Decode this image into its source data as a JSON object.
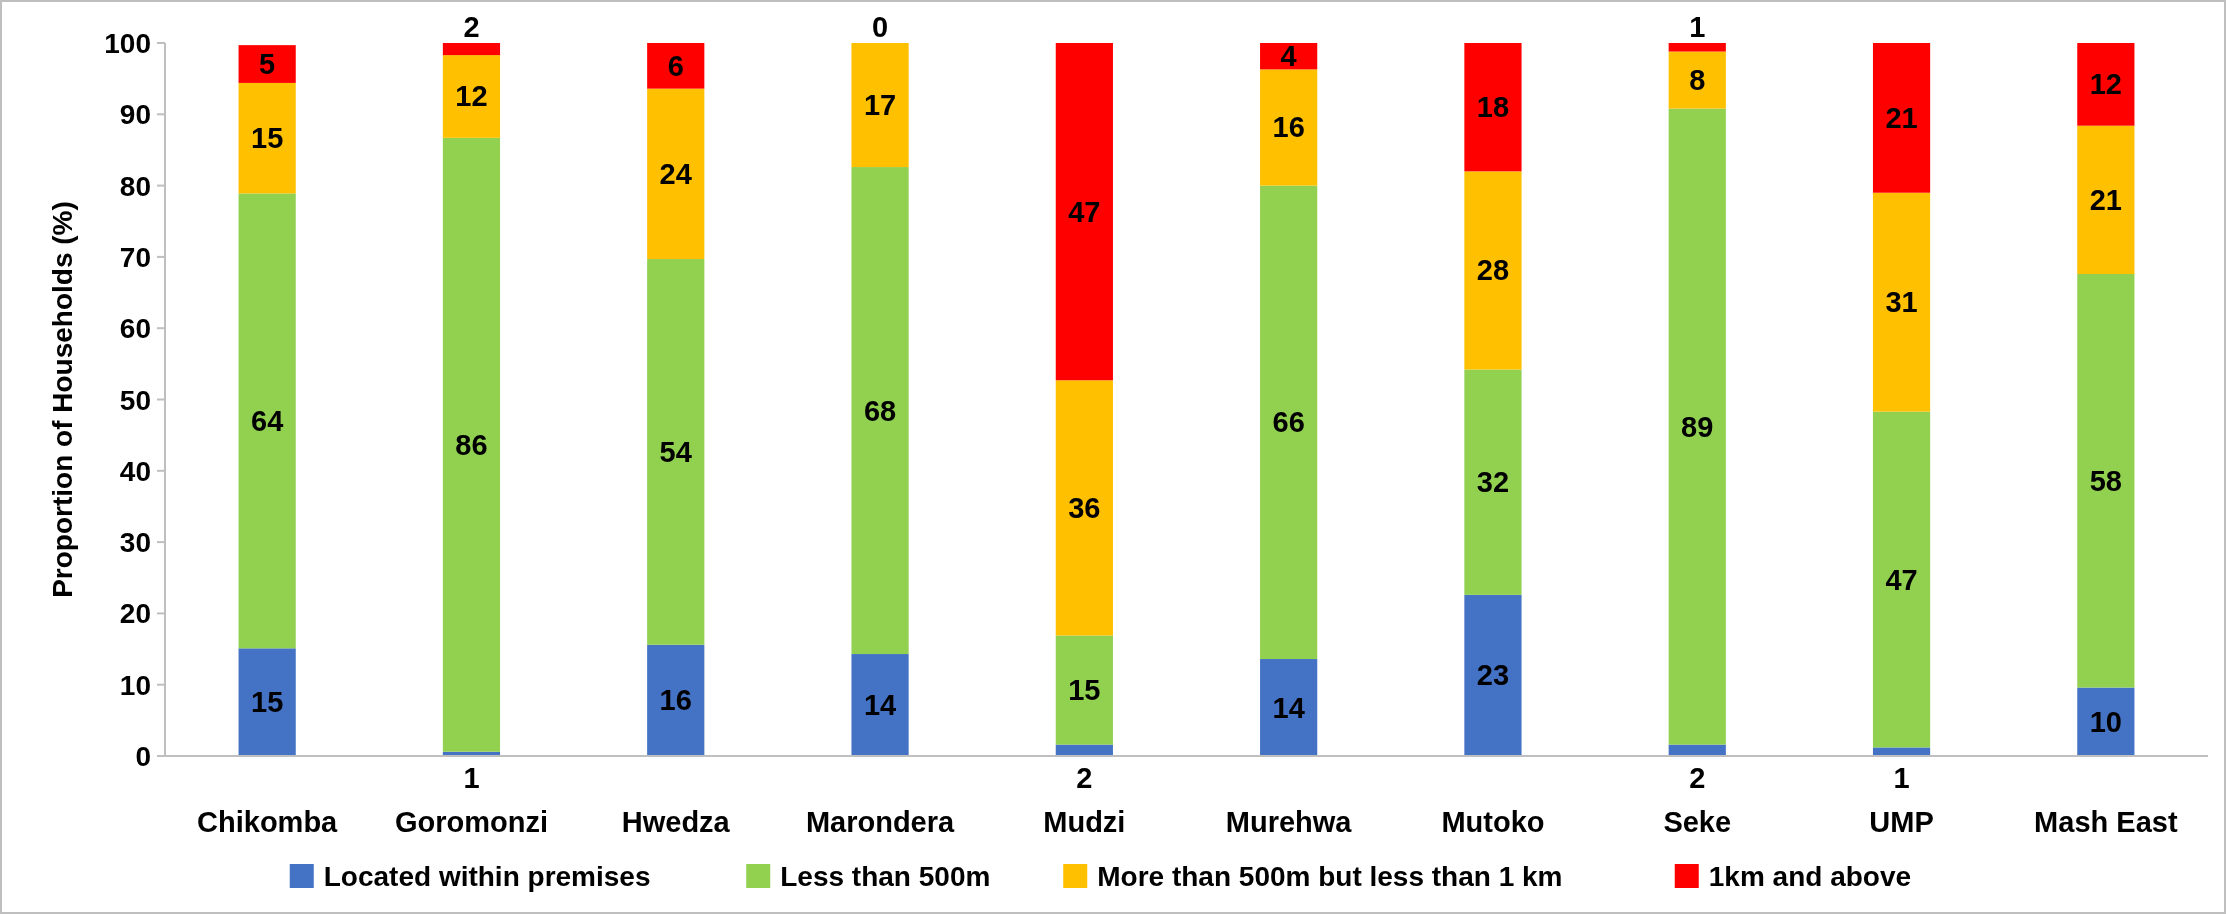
{
  "chart_data": {
    "type": "bar",
    "stacked": true,
    "ylabel": "Proportion of Households (%)",
    "categories": [
      "Chikomba",
      "Goromonzi",
      "Hwedza",
      "Marondera",
      "Mudzi",
      "Murehwa",
      "Mutoko",
      "Seke",
      "UMP",
      "Mash East"
    ],
    "series": [
      {
        "name": "Located within premises",
        "color": "#4472c4",
        "values": [
          15.1,
          0.6,
          15.6,
          14.3,
          1.6,
          13.6,
          22.6,
          1.6,
          1.2,
          9.6
        ],
        "value_labels": [
          "15",
          "1",
          "16",
          "14",
          "2",
          "14",
          "23",
          "2",
          "1",
          "10"
        ]
      },
      {
        "name": "Less than 500m",
        "color": "#92d050",
        "values": [
          63.8,
          86.1,
          54.1,
          68.3,
          15.3,
          66.4,
          31.6,
          89.2,
          47.1,
          58.0
        ],
        "value_labels": [
          "64",
          "86",
          "54",
          "68",
          "15",
          "66",
          "32",
          "89",
          "47",
          "58"
        ]
      },
      {
        "name": "More than 500m but less than 1 km",
        "color": "#ffc000",
        "values": [
          15.5,
          11.6,
          23.9,
          17.4,
          35.8,
          16.3,
          27.8,
          8.0,
          30.7,
          20.8
        ],
        "value_labels": [
          "15",
          "12",
          "24",
          "17",
          "36",
          "16",
          "28",
          "8",
          "31",
          "21"
        ]
      },
      {
        "name": "1km and above",
        "color": "#ff0000",
        "values": [
          5.3,
          1.7,
          6.4,
          0,
          47.3,
          3.7,
          18.0,
          1.2,
          21.0,
          11.6
        ],
        "value_labels": [
          "5",
          "2",
          "6",
          "0",
          "47",
          "4",
          "18",
          "1",
          "21",
          "12"
        ]
      }
    ],
    "ylim": [
      0,
      100
    ],
    "yticks": [
      0,
      10,
      20,
      30,
      40,
      50,
      60,
      70,
      80,
      90,
      100
    ],
    "grid": false,
    "legend": "bottom"
  }
}
